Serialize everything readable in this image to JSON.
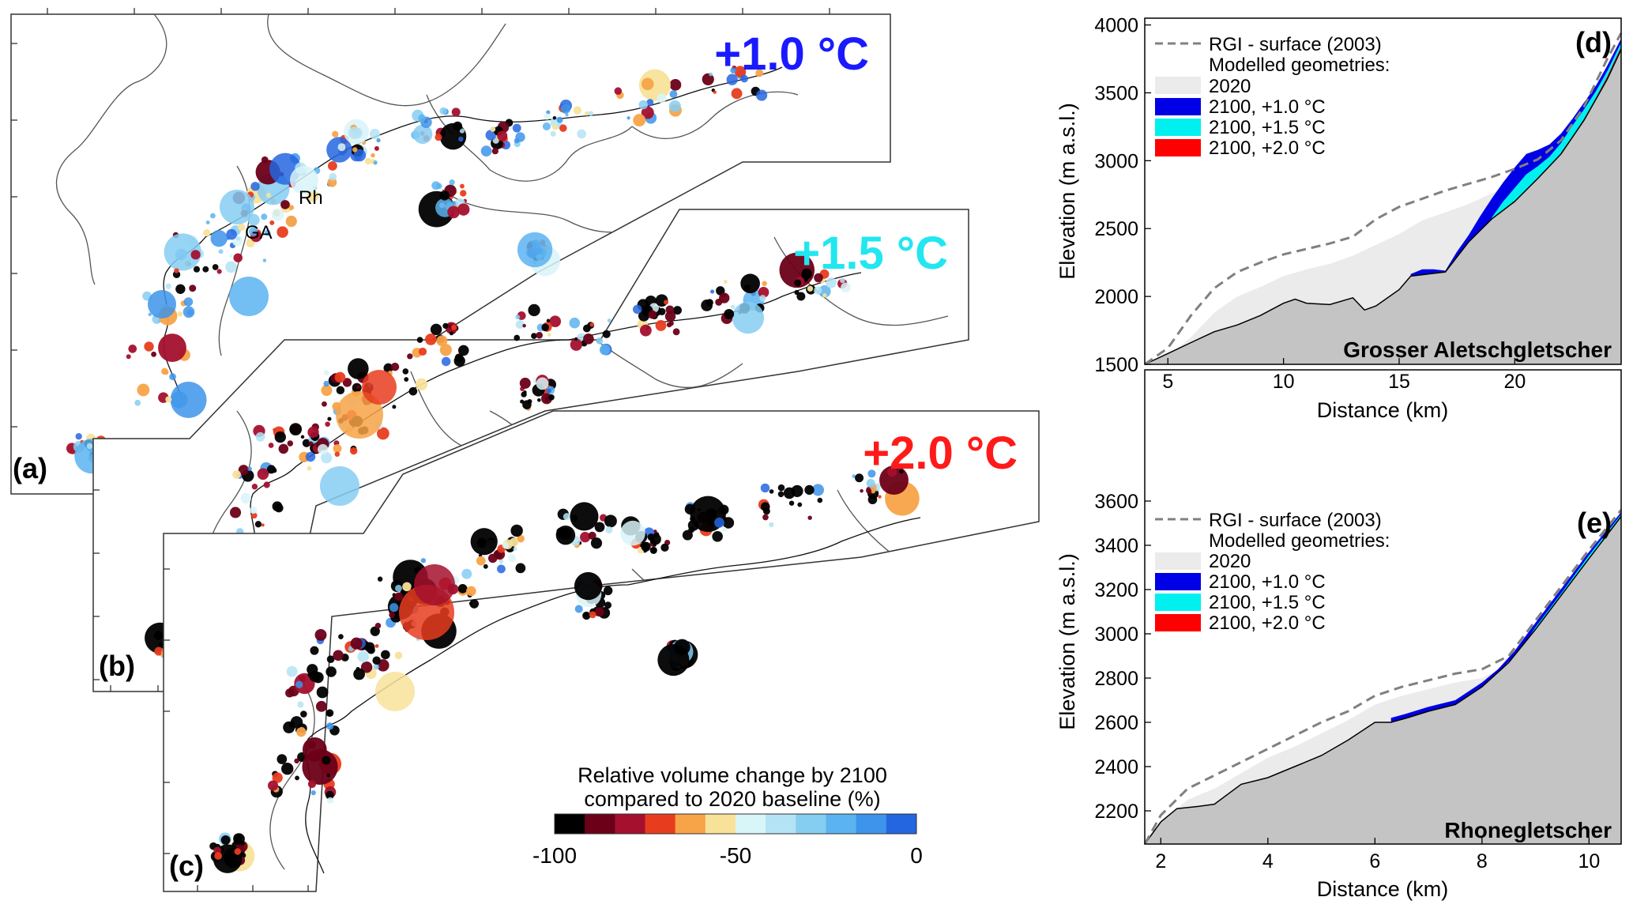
{
  "panels": {
    "a": {
      "label": "(a)",
      "scenario": "+1.0 °C",
      "color": "#1a1aff",
      "places": [
        "GA",
        "Rh"
      ]
    },
    "b": {
      "label": "(b)",
      "scenario": "+1.5 °C",
      "color": "#22e6f0"
    },
    "c": {
      "label": "(c)",
      "scenario": "+2.0 °C",
      "color": "#ff1a1a"
    }
  },
  "colorbar": {
    "title_line1": "Relative volume change by 2100",
    "title_line2": "compared to 2020 baseline (%)",
    "colors": [
      "#000000",
      "#6b0018",
      "#a4102e",
      "#e83c1f",
      "#f7a348",
      "#f8e29a",
      "#d8f5f8",
      "#b4e3f5",
      "#86cdf2",
      "#5bb3f0",
      "#3d94ea",
      "#2466e0"
    ],
    "ticks": [
      "-100",
      "-50",
      "0"
    ],
    "tick_values": [
      -100,
      -50,
      0
    ],
    "range": [
      -100,
      0
    ]
  },
  "chart_data": [
    {
      "type": "line",
      "panel_label": "(d)",
      "glacier": "Grosser Aletschgletscher",
      "xlabel": "Distance (km)",
      "ylabel": "Elevation (m a.s.l.)",
      "xlim": [
        4,
        24.6
      ],
      "ylim": [
        1500,
        4050
      ],
      "xticks": [
        5,
        10,
        15,
        20
      ],
      "yticks": [
        1500,
        2000,
        2500,
        3000,
        3500,
        4000
      ],
      "legend": {
        "rgi": "RGI - surface (2003)",
        "modelled": "Modelled geometries:",
        "y2020": "2020",
        "p10": "2100, +1.0 °C",
        "p15": "2100, +1.5 °C",
        "p20": "2100, +2.0 °C",
        "placement": "top-left"
      },
      "colors": {
        "bed": "#c4c4c4",
        "s2020": "#ebebeb",
        "p10": "#0000e6",
        "p15": "#00f0f0",
        "p20": "#ff0000",
        "rgi": "#808080"
      },
      "series": {
        "bed": {
          "x": [
            4,
            5,
            6,
            7,
            8,
            9,
            10,
            10.5,
            11,
            12,
            13,
            13.5,
            14,
            15,
            15.5,
            16,
            16.5,
            17,
            18,
            19,
            20,
            21,
            22,
            23,
            24,
            24.6
          ],
          "y": [
            1500,
            1580,
            1660,
            1740,
            1790,
            1860,
            1950,
            1980,
            1950,
            1940,
            1990,
            1900,
            1930,
            2050,
            2150,
            2160,
            2170,
            2180,
            2400,
            2570,
            2700,
            2870,
            3050,
            3300,
            3600,
            3820
          ]
        },
        "s2020": {
          "x": [
            4,
            5,
            6,
            7,
            8,
            9,
            10,
            11,
            12,
            13,
            14,
            15,
            16,
            17,
            18,
            19,
            20,
            21,
            22,
            23,
            24,
            24.6
          ],
          "y": [
            1500,
            1560,
            1700,
            1880,
            2000,
            2070,
            2150,
            2200,
            2240,
            2300,
            2380,
            2460,
            2560,
            2620,
            2680,
            2760,
            2840,
            2930,
            3080,
            3350,
            3680,
            3900
          ]
        },
        "p10": {
          "x": [
            15.5,
            16,
            16.5,
            17,
            17.5,
            18,
            18.5,
            19,
            19.5,
            20,
            20.5,
            21,
            21.5,
            22,
            22.5,
            23,
            23.5,
            24,
            24.6
          ],
          "y": [
            2165,
            2200,
            2200,
            2190,
            2330,
            2450,
            2590,
            2720,
            2840,
            2950,
            3050,
            3080,
            3120,
            3200,
            3310,
            3430,
            3550,
            3700,
            3900
          ]
        },
        "p15": {
          "x": [
            19,
            19.5,
            20,
            20.5,
            21,
            21.5,
            22,
            22.5,
            23,
            23.5,
            24,
            24.6
          ],
          "y": [
            2580,
            2700,
            2800,
            2900,
            2960,
            3030,
            3130,
            3260,
            3380,
            3510,
            3660,
            3870
          ]
        },
        "p20": {
          "x": [
            22,
            22.5,
            23,
            23.5,
            24,
            24.6
          ],
          "y": [
            3060,
            3180,
            3310,
            3460,
            3620,
            3840
          ]
        },
        "rgi": {
          "x": [
            4,
            5,
            6,
            7,
            8,
            9,
            10,
            11,
            12,
            13,
            14,
            15,
            16,
            17,
            18,
            19,
            20,
            21,
            22,
            23,
            24,
            24.6
          ],
          "y": [
            1500,
            1620,
            1860,
            2060,
            2180,
            2250,
            2310,
            2350,
            2390,
            2440,
            2570,
            2660,
            2720,
            2780,
            2830,
            2880,
            2940,
            3010,
            3150,
            3400,
            3750,
            3940
          ]
        }
      }
    },
    {
      "type": "line",
      "panel_label": "(e)",
      "glacier": "Rhonegletscher",
      "xlabel": "Distance (km)",
      "ylabel": "Elevation (m a.s.l.)",
      "xlim": [
        1.7,
        10.6
      ],
      "ylim": [
        2050,
        3650
      ],
      "xticks": [
        2,
        4,
        6,
        8,
        10
      ],
      "yticks": [
        2200,
        2400,
        2600,
        2800,
        3000,
        3200,
        3400,
        3600
      ],
      "legend": {
        "rgi": "RGI - surface (2003)",
        "modelled": "Modelled geometries:",
        "y2020": "2020",
        "p10": "2100, +1.0 °C",
        "p15": "2100, +1.5 °C",
        "p20": "2100, +2.0 °C",
        "placement": "top-left"
      },
      "colors": {
        "bed": "#c4c4c4",
        "s2020": "#ebebeb",
        "p10": "#0000e6",
        "p15": "#00f0f0",
        "p20": "#ff0000",
        "rgi": "#808080"
      },
      "series": {
        "bed": {
          "x": [
            1.7,
            2,
            2.3,
            2.7,
            3,
            3.5,
            4,
            4.5,
            5,
            5.5,
            6,
            6.3,
            6.6,
            7,
            7.5,
            8,
            8.5,
            9,
            9.5,
            10,
            10.6
          ],
          "y": [
            2050,
            2150,
            2210,
            2220,
            2230,
            2320,
            2350,
            2400,
            2450,
            2520,
            2600,
            2600,
            2620,
            2650,
            2680,
            2760,
            2870,
            3020,
            3180,
            3340,
            3530
          ]
        },
        "s2020": {
          "x": [
            1.7,
            2,
            2.5,
            3,
            3.5,
            4,
            4.5,
            5,
            5.5,
            6,
            6.5,
            7,
            7.5,
            8,
            8.5,
            9,
            9.5,
            10,
            10.6
          ],
          "y": [
            2050,
            2150,
            2250,
            2300,
            2370,
            2440,
            2490,
            2550,
            2610,
            2680,
            2720,
            2750,
            2780,
            2800,
            2860,
            3040,
            3200,
            3360,
            3540
          ]
        },
        "p10": {
          "x": [
            6.3,
            6.6,
            7,
            7.5,
            8,
            8.3,
            8.6,
            9,
            9.5,
            10,
            10.6
          ],
          "y": [
            2620,
            2640,
            2670,
            2700,
            2780,
            2840,
            2920,
            3050,
            3210,
            3370,
            3550
          ]
        },
        "p15": {
          "x": [
            8.8,
            9,
            9.5,
            10,
            10.6
          ],
          "y": [
            2960,
            3030,
            3190,
            3355,
            3540
          ]
        },
        "p20": {
          "x": [
            9.8,
            10,
            10.3,
            10.6
          ],
          "y": [
            3270,
            3340,
            3440,
            3535
          ]
        },
        "rgi": {
          "x": [
            1.7,
            2,
            2.5,
            3,
            3.5,
            4,
            4.5,
            5,
            5.5,
            6,
            6.5,
            7,
            7.5,
            8,
            8.5,
            9,
            9.5,
            10,
            10.6
          ],
          "y": [
            2050,
            2180,
            2300,
            2360,
            2420,
            2480,
            2540,
            2600,
            2650,
            2720,
            2760,
            2790,
            2820,
            2840,
            2900,
            3060,
            3220,
            3380,
            3560
          ]
        }
      }
    }
  ]
}
